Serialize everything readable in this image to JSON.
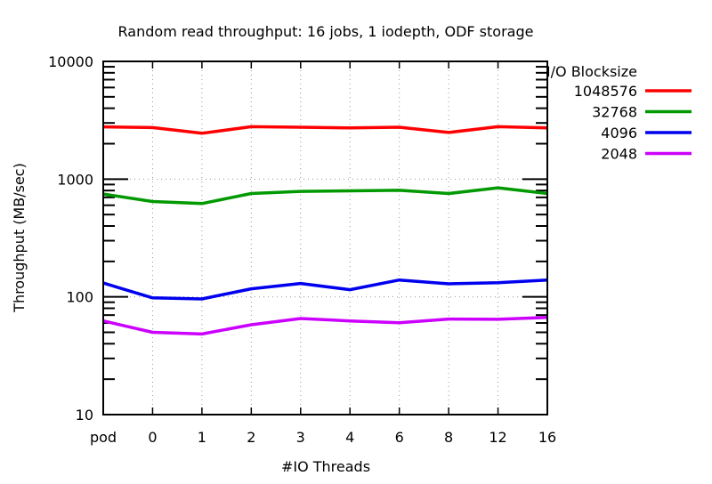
{
  "chart_data": {
    "type": "line",
    "title": "Random read throughput: 16 jobs, 1 iodepth, ODF storage",
    "xlabel": "#IO Threads",
    "ylabel": "Throughput (MB/sec)",
    "yscale": "log",
    "ylim": [
      10,
      10000
    ],
    "yticks": [
      "10",
      "100",
      "1000",
      "10000"
    ],
    "categories": [
      "pod",
      "0",
      "1",
      "2",
      "3",
      "4",
      "6",
      "8",
      "12",
      "16"
    ],
    "grid": true,
    "legend": {
      "title": "I/O Blocksize",
      "placement": "outside-right"
    },
    "series": [
      {
        "name": "1048576",
        "color": "#ff0000",
        "values": [
          2780,
          2740,
          2450,
          2790,
          2760,
          2720,
          2760,
          2490,
          2790,
          2720
        ]
      },
      {
        "name": "32768",
        "color": "#009900",
        "values": [
          747,
          645,
          620,
          755,
          787,
          795,
          804,
          755,
          843,
          755
        ]
      },
      {
        "name": "4096",
        "color": "#0000ee",
        "values": [
          131,
          98,
          96,
          117,
          130,
          115,
          139,
          129,
          132,
          139
        ]
      },
      {
        "name": "2048",
        "color": "#cc00ff",
        "values": [
          62.5,
          50,
          48.4,
          58,
          65.5,
          62.5,
          60.3,
          64.8,
          64.5,
          67
        ]
      }
    ]
  }
}
